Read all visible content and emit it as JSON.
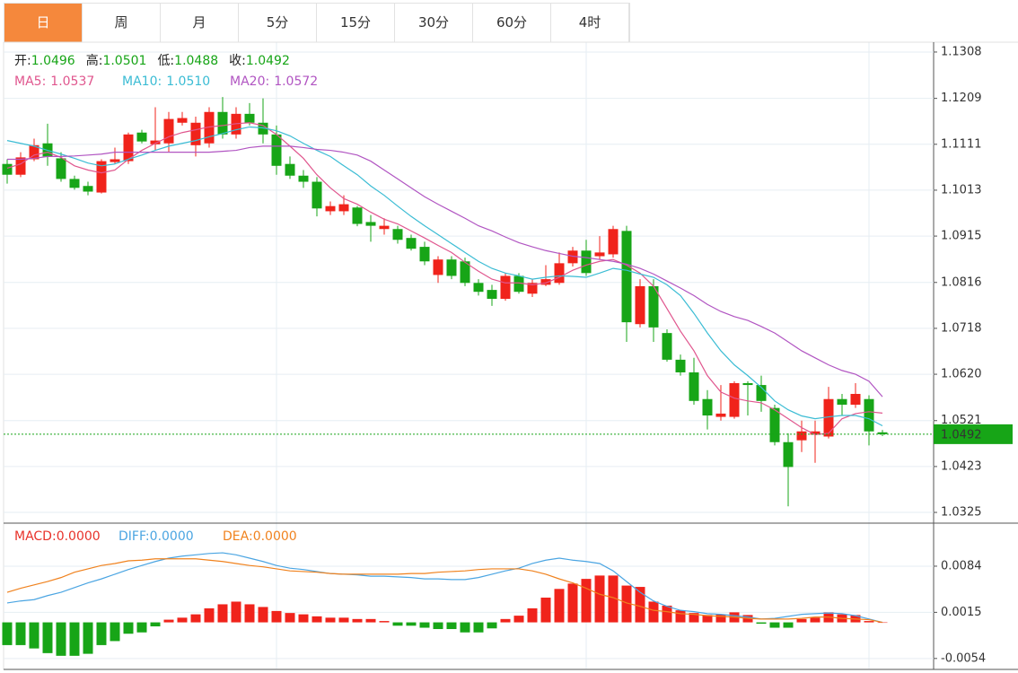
{
  "tabs": [
    "日",
    "周",
    "月",
    "5分",
    "15分",
    "30分",
    "60分",
    "4时"
  ],
  "active_tab": 0,
  "chart_data": [
    {
      "type": "candlestick",
      "ohlc_labels": [
        "开:",
        "高:",
        "低:",
        "收:"
      ],
      "open": [
        1.1069,
        1.1046,
        1.1079,
        1.1113,
        1.1081,
        1.1037,
        1.1022,
        1.1008,
        1.1073,
        1.1075,
        1.1136,
        1.1111,
        1.1113,
        1.1157,
        1.1109,
        1.1113,
        1.118,
        1.1132,
        1.1176,
        1.1157,
        1.1132,
        1.1069,
        1.1044,
        1.1031,
        1.0968,
        1.0968,
        1.0976,
        1.0945,
        1.093,
        1.093,
        1.0911,
        1.0892,
        1.0832,
        1.0865,
        1.0861,
        1.0815,
        1.08,
        1.0781,
        1.083,
        1.0792,
        1.0811,
        1.0815,
        1.0857,
        1.0884,
        1.0872,
        1.0876,
        1.0926,
        1.0727,
        1.0808,
        1.0708,
        1.0651,
        1.0624,
        1.0567,
        1.0529,
        1.0529,
        1.0601,
        1.0597,
        1.0548,
        1.0475,
        1.0479,
        1.0491,
        1.0487,
        1.0567,
        1.0555,
        1.0567,
        1.0496
      ],
      "high": [
        1.1079,
        1.1094,
        1.1123,
        1.1155,
        1.1094,
        1.1044,
        1.1031,
        1.1079,
        1.1104,
        1.1136,
        1.1142,
        1.119,
        1.118,
        1.118,
        1.117,
        1.119,
        1.1212,
        1.119,
        1.1199,
        1.1209,
        1.1151,
        1.1085,
        1.1056,
        1.1041,
        1.0989,
        1.1002,
        1.0979,
        1.096,
        1.0953,
        1.0937,
        1.0918,
        1.0903,
        1.0872,
        1.0872,
        1.0869,
        1.0823,
        1.0811,
        1.0836,
        1.0836,
        1.0823,
        1.0853,
        1.088,
        1.0892,
        1.0907,
        1.0915,
        1.0937,
        1.0937,
        1.0823,
        1.0823,
        1.0716,
        1.0662,
        1.0655,
        1.0586,
        1.0597,
        1.0605,
        1.0605,
        1.0617,
        1.0555,
        1.0494,
        1.0521,
        1.0521,
        1.0593,
        1.0578,
        1.0601,
        1.0575,
        1.0501
      ],
      "low": [
        1.1027,
        1.1041,
        1.1075,
        1.1065,
        1.1031,
        1.1014,
        1.1002,
        1.1006,
        1.1069,
        1.1069,
        1.1113,
        1.1098,
        1.1094,
        1.1151,
        1.1085,
        1.1104,
        1.1123,
        1.1123,
        1.1151,
        1.1113,
        1.1046,
        1.1037,
        1.1018,
        1.0957,
        1.096,
        1.096,
        1.0936,
        1.0903,
        1.0918,
        1.0899,
        1.0884,
        1.0853,
        1.0815,
        1.0823,
        1.0808,
        1.0788,
        1.0766,
        1.0777,
        1.0792,
        1.0785,
        1.0808,
        1.0811,
        1.085,
        1.083,
        1.0865,
        1.0869,
        1.0689,
        1.072,
        1.0689,
        1.0647,
        1.0617,
        1.0555,
        1.0502,
        1.0521,
        1.0525,
        1.0532,
        1.054,
        1.0468,
        1.0338,
        1.0454,
        1.0431,
        1.0483,
        1.0532,
        1.0548,
        1.0468,
        1.0488
      ],
      "close": [
        1.1046,
        1.1083,
        1.1109,
        1.1085,
        1.1037,
        1.1018,
        1.101,
        1.1075,
        1.1079,
        1.1132,
        1.1117,
        1.1119,
        1.1165,
        1.1167,
        1.1157,
        1.118,
        1.1132,
        1.1176,
        1.1157,
        1.1132,
        1.1065,
        1.1044,
        1.1031,
        1.0974,
        1.0979,
        1.0983,
        1.0941,
        1.0937,
        1.0937,
        1.0907,
        1.0888,
        1.0861,
        1.0865,
        1.083,
        1.0815,
        1.0796,
        1.0781,
        1.083,
        1.0796,
        1.0815,
        1.0823,
        1.0857,
        1.0884,
        1.0836,
        1.088,
        1.093,
        1.0731,
        1.0808,
        1.072,
        1.0651,
        1.0624,
        1.0563,
        1.0532,
        1.0536,
        1.0601,
        1.0597,
        1.0563,
        1.0475,
        1.0422,
        1.0498,
        1.0498,
        1.0567,
        1.0555,
        1.0578,
        1.0498,
        1.0492
      ],
      "up_color": "#f0231b",
      "down_color": "#17a517",
      "series": [
        {
          "name": "MA5:",
          "color": "#e0568e",
          "values": [
            1.106,
            1.1069,
            1.1088,
            1.1094,
            1.1083,
            1.1065,
            1.1056,
            1.105,
            1.1056,
            1.1079,
            1.1098,
            1.1113,
            1.1127,
            1.1136,
            1.1142,
            1.1148,
            1.1151,
            1.1155,
            1.1157,
            1.1151,
            1.1132,
            1.1107,
            1.1081,
            1.1046,
            1.1018,
            1.0995,
            1.0983,
            1.0966,
            1.0951,
            1.0941,
            1.0926,
            1.0911,
            1.0895,
            1.088,
            1.0859,
            1.084,
            1.0823,
            1.0815,
            1.0815,
            1.0811,
            1.0815,
            1.0827,
            1.0842,
            1.0853,
            1.0861,
            1.0865,
            1.0853,
            1.0836,
            1.0808,
            1.076,
            1.0712,
            1.067,
            1.0617,
            1.0582,
            1.0569,
            1.0563,
            1.0559,
            1.0544,
            1.0525,
            1.0506,
            1.0491,
            1.0494,
            1.0525,
            1.0536,
            1.054,
            1.0537
          ]
        },
        {
          "name": "MA10:",
          "color": "#3bbcd4",
          "values": [
            1.1119,
            1.1113,
            1.1107,
            1.1098,
            1.109,
            1.1081,
            1.1071,
            1.1065,
            1.1069,
            1.1079,
            1.1088,
            1.1098,
            1.1107,
            1.1113,
            1.1119,
            1.1127,
            1.1134,
            1.1142,
            1.1148,
            1.1146,
            1.114,
            1.1129,
            1.1113,
            1.1098,
            1.1085,
            1.1065,
            1.1046,
            1.1022,
            1.1002,
            1.0979,
            1.0957,
            1.0937,
            1.0918,
            1.0899,
            1.088,
            1.0861,
            1.0846,
            1.0836,
            1.083,
            1.0823,
            1.0827,
            1.083,
            1.0829,
            1.0827,
            1.0836,
            1.0846,
            1.0842,
            1.0834,
            1.0827,
            1.0811,
            1.0788,
            1.075,
            1.0708,
            1.067,
            1.064,
            1.0617,
            1.0592,
            1.0563,
            1.0544,
            1.0531,
            1.0525,
            1.0529,
            1.0532,
            1.0532,
            1.0525,
            1.051
          ],
          "value_labels": {
            "65": "1.0510"
          }
        },
        {
          "name": "MA20:",
          "color": "#b155c2",
          "values": [
            1.1079,
            1.1079,
            1.1081,
            1.1085,
            1.1085,
            1.1086,
            1.1088,
            1.109,
            1.1094,
            1.1094,
            1.1094,
            1.1094,
            1.1094,
            1.1094,
            1.1094,
            1.1094,
            1.1096,
            1.1098,
            1.1104,
            1.1107,
            1.1107,
            1.1107,
            1.1104,
            1.11,
            1.1098,
            1.1094,
            1.1088,
            1.1075,
            1.1056,
            1.1037,
            1.1018,
            1.0999,
            1.0983,
            1.0968,
            1.0953,
            1.0937,
            1.0926,
            1.0913,
            1.0901,
            1.0892,
            1.0884,
            1.0878,
            1.0872,
            1.0869,
            1.0865,
            1.0861,
            1.0855,
            1.0846,
            1.0834,
            1.0819,
            1.0804,
            1.0788,
            1.0769,
            1.0754,
            1.0743,
            1.0735,
            1.0722,
            1.0708,
            1.0689,
            1.067,
            1.0655,
            1.064,
            1.0628,
            1.062,
            1.0605,
            1.0572
          ]
        }
      ],
      "ylim": [
        1.0304,
        1.1329
      ],
      "yticks": [
        1.1308,
        1.1209,
        1.1111,
        1.1013,
        1.0915,
        1.0816,
        1.0718,
        {
          "value": 1.062,
          "label": "1.0620"
        },
        1.0521,
        1.0423,
        1.0325
      ],
      "grid": true
    },
    {
      "type": "macd",
      "up_color": "#f0231b",
      "down_color": "#17a517",
      "series": [
        {
          "name": "MACD:",
          "color": "#e8322a",
          "style": "bar",
          "values": [
            -0.0034,
            -0.0034,
            -0.0039,
            -0.0046,
            -0.005,
            -0.005,
            -0.0047,
            -0.0034,
            -0.0028,
            -0.0017,
            -0.0015,
            -0.0006,
            0.0004,
            0.0007,
            0.0012,
            0.0021,
            0.0027,
            0.0031,
            0.0027,
            0.0023,
            0.0017,
            0.0014,
            0.0012,
            0.0009,
            0.0007,
            0.0007,
            0.0005,
            0.0005,
            0.0002,
            -0.0005,
            -0.0005,
            -0.0008,
            -0.001,
            -0.001,
            -0.0015,
            -0.0015,
            -0.0009,
            0.0005,
            0.001,
            0.0021,
            0.0037,
            0.005,
            0.0058,
            0.0065,
            0.007,
            0.007,
            0.0055,
            0.0053,
            0.0031,
            0.0025,
            0.0018,
            0.0014,
            0.0011,
            0.0012,
            0.0015,
            0.0011,
            -0.0002,
            -0.0008,
            -0.0008,
            0.0005,
            0.0007,
            0.0015,
            0.0012,
            0.0011,
            0.0002,
            0
          ],
          "value_labels": {
            "65": "0.0000"
          }
        },
        {
          "name": "DIFF:",
          "color": "#4ba5e2",
          "style": "line",
          "values": [
            0.0029,
            0.0032,
            0.0034,
            0.004,
            0.0045,
            0.0052,
            0.0059,
            0.0065,
            0.0072,
            0.0079,
            0.0085,
            0.0091,
            0.0096,
            0.0099,
            0.0101,
            0.0103,
            0.0104,
            0.0101,
            0.0096,
            0.0091,
            0.0085,
            0.0081,
            0.0079,
            0.0076,
            0.0073,
            0.0072,
            0.0071,
            0.0069,
            0.0069,
            0.0068,
            0.0067,
            0.0065,
            0.0065,
            0.0064,
            0.0064,
            0.0067,
            0.0072,
            0.0077,
            0.0081,
            0.0088,
            0.0093,
            0.0096,
            0.0093,
            0.0091,
            0.0088,
            0.0077,
            0.0061,
            0.0045,
            0.0032,
            0.0024,
            0.0018,
            0.0016,
            0.0013,
            0.0012,
            0.001,
            0.0008,
            0.0005,
            0.0006,
            0.0009,
            0.0012,
            0.0013,
            0.0014,
            0.0013,
            0.001,
            0.0005,
            0
          ],
          "value_labels": {
            "65": "0.0000"
          }
        },
        {
          "name": "DEA:",
          "color": "#f0821e",
          "style": "line",
          "values": [
            0.0045,
            0.0051,
            0.0056,
            0.0061,
            0.0067,
            0.0075,
            0.008,
            0.0085,
            0.0088,
            0.0092,
            0.0093,
            0.0095,
            0.0095,
            0.0095,
            0.0095,
            0.0093,
            0.0091,
            0.0088,
            0.0085,
            0.0083,
            0.008,
            0.0077,
            0.0076,
            0.0075,
            0.0073,
            0.0072,
            0.0072,
            0.0072,
            0.0072,
            0.0072,
            0.0073,
            0.0073,
            0.0075,
            0.0076,
            0.0077,
            0.0079,
            0.008,
            0.008,
            0.008,
            0.0077,
            0.0072,
            0.0065,
            0.0059,
            0.0051,
            0.0042,
            0.0037,
            0.0029,
            0.0024,
            0.0018,
            0.0016,
            0.0013,
            0.0012,
            0.001,
            0.0009,
            0.0008,
            0.0006,
            0.0005,
            0.0005,
            0.0005,
            0.0006,
            0.0008,
            0.0008,
            0.0006,
            0.0005,
            0.0004,
            0
          ],
          "value_labels": {
            "65": "0.0000"
          }
        }
      ],
      "ylim": [
        -0.0069,
        0.0147
      ],
      "yticks": [
        0.0084,
        0.0015,
        -0.0054
      ],
      "grid": true
    }
  ]
}
